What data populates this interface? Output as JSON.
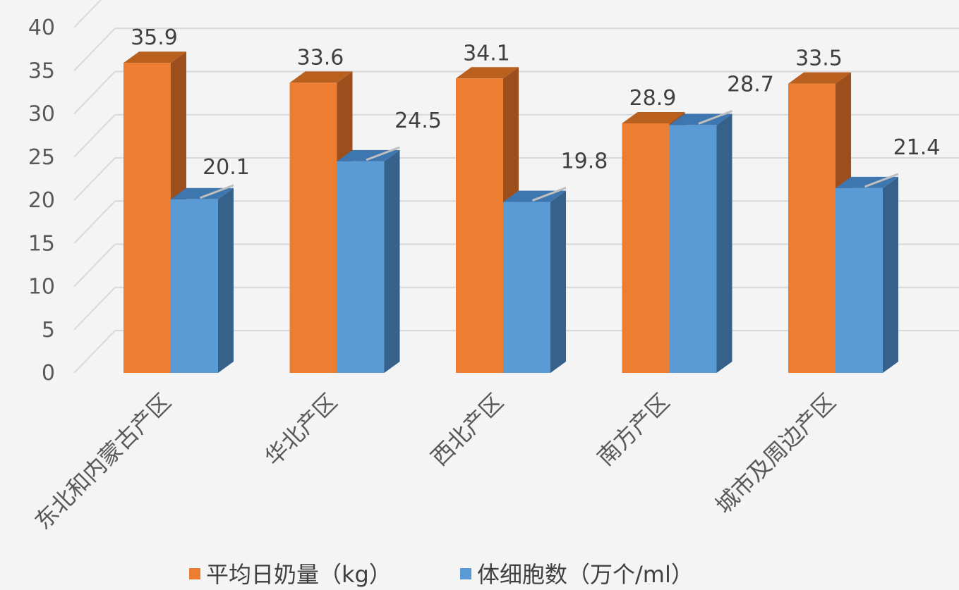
{
  "chart_data": {
    "type": "bar",
    "style": "3d-clustered-column",
    "categories": [
      "东北和内蒙古产区",
      "华北产区",
      "西北产区",
      "南方产区",
      "城市及周边产区"
    ],
    "series": [
      {
        "name": "平均日奶量（kg）",
        "values": [
          35.9,
          33.6,
          34.1,
          28.9,
          33.5
        ],
        "color": "#ed7d31",
        "side_color": "#9c4f1c",
        "top_color": "#b9601f"
      },
      {
        "name": "体细胞数（万个/ml）",
        "values": [
          20.1,
          24.5,
          19.8,
          28.7,
          21.4
        ],
        "color": "#5b9bd5",
        "side_color": "#35618b",
        "top_color": "#3e76b0"
      }
    ],
    "y_ticks": [
      "0",
      "5",
      "10",
      "15",
      "20",
      "25",
      "30",
      "35",
      "40"
    ],
    "ylim": [
      0,
      40
    ],
    "grid": true,
    "legend_position": "bottom",
    "data_labels": [
      [
        "35.9",
        "33.6",
        "34.1",
        "28.9",
        "33.5"
      ],
      [
        "20.1",
        "24.5",
        "19.8",
        "28.7",
        "21.4"
      ]
    ]
  }
}
